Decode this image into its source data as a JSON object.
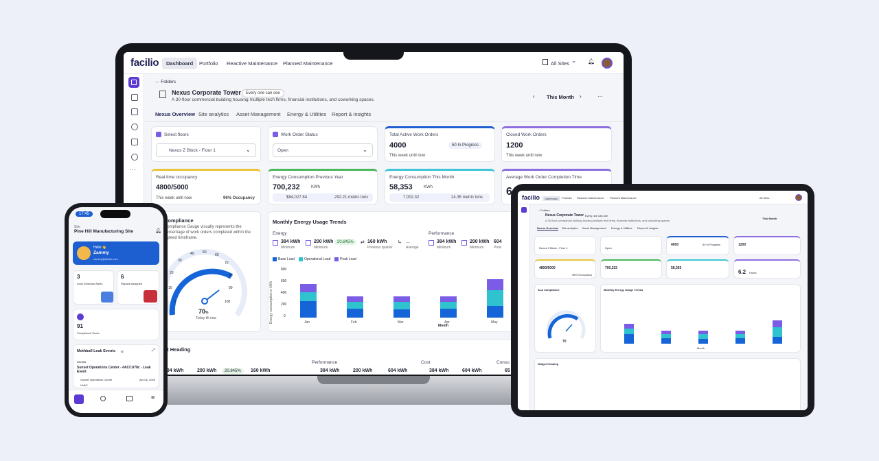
{
  "laptop": {
    "logo": "facilio",
    "nav": [
      "Dashboard",
      "Portfolio",
      "Reactive Maintenance",
      "Planned Maintenance"
    ],
    "site_selector": "All Sites",
    "breadcrumb": "← Folders",
    "building_name": "Nexus Corporate Tower",
    "visibility_badge": "Every one can see",
    "building_desc": "A 30-floor commercial building housing multiple tech firms, financial institutions, and coworking spaces.",
    "period": "This Month",
    "tabs": [
      "Nexus Overview",
      "Site analytics",
      "Asset Management",
      "Energy & Utilities",
      "Report & insights"
    ],
    "select_floors_label": "Select floors",
    "select_floors_value": "Nexus Z Block - Floor 1",
    "work_order_status_label": "Work Order Status",
    "work_order_status_value": "Open",
    "total_active": {
      "label": "Total Active Work Orders",
      "value": "4000",
      "badge": "50 In Progress",
      "sub": "This week until now"
    },
    "closed": {
      "label": "Closed Work Orders",
      "value": "1200",
      "sub": "This week until now"
    },
    "occupancy": {
      "label": "Real time occupancy",
      "value": "4800/5000",
      "sub": "This week until now",
      "pct": "96% Occupancy"
    },
    "energy_prev": {
      "label": "Energy Consumption Previous Year",
      "value": "700,232",
      "unit": "KWh",
      "cost": "$84,027.84",
      "co2": "292.21 metric tons"
    },
    "energy_this": {
      "label": "Energy Consumption This Month",
      "value": "58,353",
      "unit": "KWh",
      "cost": "7,002.32",
      "co2": "24.35 metric tons"
    },
    "avg_completion": {
      "label": "Average Work Order Completion Time",
      "value": "6"
    },
    "sla": {
      "title": "Compliance",
      "desc": "Compliance Gauge visually represents the percentage of work orders completed within the agreed timeframe.",
      "value": "70",
      "unit": "%",
      "sub": "Today till now",
      "ticks": [
        "0",
        "10",
        "20",
        "30",
        "40",
        "50",
        "60",
        "70",
        "80",
        "90",
        "100"
      ]
    },
    "monthly": {
      "title": "Monthly Energy Usage Trends",
      "energy_label": "Energy",
      "performance_label": "Performance",
      "stats": [
        {
          "v": "384 kWh",
          "s": "Minimum"
        },
        {
          "v": "200 kWh",
          "s": "Minimum"
        },
        {
          "v": "20.845%",
          "s": ""
        },
        {
          "v": "160 kWh",
          "s": "Previous quarter"
        },
        {
          "v": "...",
          "s": "Average"
        },
        {
          "v": "384 kWh",
          "s": "Minimum"
        },
        {
          "v": "200 kWh",
          "s": "Minimum"
        },
        {
          "v": "604",
          "s": "Previ"
        }
      ],
      "legend": [
        "Base Load",
        "Operational Load",
        "Peak Load"
      ],
      "ylabel": "Energy consumption in kWh",
      "xlabel": "Month",
      "yticks": [
        "800",
        "600",
        "400",
        "200",
        "0"
      ]
    },
    "widget": {
      "title": "Widget Heading",
      "title_visible": "et Heading",
      "perf": "Performance",
      "cost": "Cost",
      "cons": "Consu",
      "stats": [
        "384 kWh",
        "200 kWh",
        "20.845%",
        "160 kWh",
        "384 kWh",
        "200 kWh",
        "604 kWh",
        "384 kWh",
        "604 kWh",
        "65"
      ]
    }
  },
  "chart_data": {
    "type": "bar",
    "categories": [
      "Jan",
      "Feb",
      "Mar",
      "Apr",
      "May"
    ],
    "series": [
      {
        "name": "Base Load",
        "values": [
          270,
          150,
          140,
          150,
          200
        ]
      },
      {
        "name": "Operational Load",
        "values": [
          150,
          110,
          120,
          110,
          260
        ]
      },
      {
        "name": "Peak Load",
        "values": [
          140,
          100,
          100,
          100,
          180
        ]
      }
    ],
    "xlabel": "Month",
    "ylabel": "Energy consumption in kWh",
    "ylim": [
      0,
      800
    ]
  },
  "tablet": {
    "logo": "facilio",
    "nav": [
      "Dashboard",
      "Portfolio",
      "Reactive Maintenance",
      "Planned Maintenance"
    ],
    "site": "All Sites",
    "breadcrumb": "← Folders",
    "building": "Nexus Corporate Tower",
    "badge": "Every one can see",
    "desc": "A 30-floor commercial building housing multiple tech firms, financial institutions, and coworking spaces.",
    "period": "This Month",
    "tabs": [
      "Nexus Overview",
      "Site analytics",
      "Asset Management",
      "Energy & Utilities",
      "Report & insights"
    ],
    "floors": "Nexus Z Block - Floor 1",
    "status": "Open",
    "active": "4000",
    "active_badge": "50 In Progress",
    "closed": "1200",
    "occupancy": "4800/5000",
    "occ_pct": "96% Occupancy",
    "prev": "700,232",
    "this": "58,353",
    "avg": "6.2",
    "avg_unit": "Hours",
    "sla_title": "SLA Compliance",
    "sla_val": "70",
    "monthly_title": "Monthly Energy Usage Trends",
    "widget_title": "Widget Heading",
    "month": "Month"
  },
  "phone": {
    "time": "17:45",
    "site_label": "Site",
    "site": "Pine Hill Manufacturing Site",
    "hello": "Hello 👋",
    "name": "Zammy",
    "email": "zammy@facilio.com",
    "leaks": "3",
    "leaks_label": "Leak Selection Alerts",
    "repairs": "6",
    "repairs_label": "Repairs Assigned",
    "score": "91",
    "score_label": "Compliance Score",
    "events_title": "Mothball Leak Events",
    "events_count": "5",
    "event_id": "#82485",
    "event_title": "Sunset Operations Center - #ACCU78c - Leak Event",
    "event_loc": "Sunset Operations Center",
    "event_date": "Apr 06, 2025",
    "event_tag": "HVAC"
  }
}
